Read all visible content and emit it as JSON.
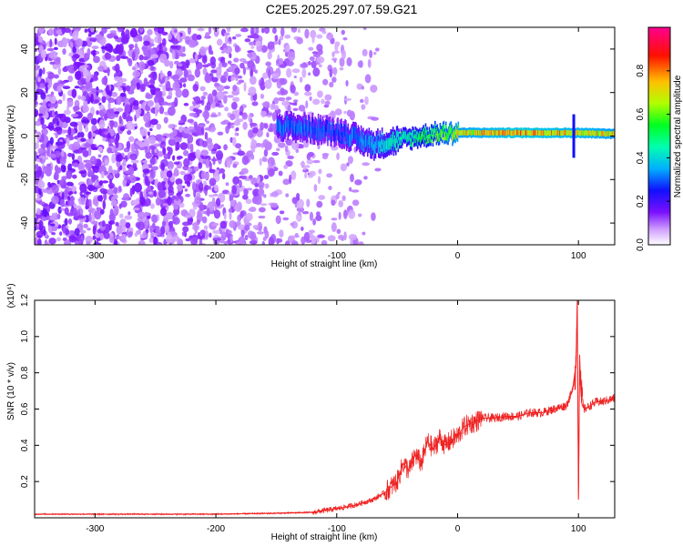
{
  "title": "C2E5.2025.297.07.59.G21",
  "chart_data": [
    {
      "type": "heatmap",
      "xlabel": "Height of straight line (km)",
      "ylabel": "Frequency (Hz)",
      "xlim": [
        -350,
        130
      ],
      "ylim": [
        -50,
        50
      ],
      "xticks": [
        -300,
        -200,
        -100,
        0,
        100
      ],
      "yticks": [
        -40,
        -20,
        0,
        20,
        40
      ],
      "colorbar": {
        "label": "Normalized spectral amplitude",
        "range": [
          0.0,
          1.0
        ],
        "ticks": [
          "0.0",
          "0.2",
          "0.4",
          "0.6",
          "0.8"
        ],
        "colormap": [
          "#ffffff",
          "#d9b3ff",
          "#a050ff",
          "#6a00ff",
          "#0000ff",
          "#00c8ff",
          "#00ff60",
          "#c8ff00",
          "#ffb000",
          "#ff0000",
          "#ff0090"
        ]
      },
      "signal_band": {
        "center_freq_hz": 1.5,
        "x_start_km": -150,
        "x_end_km": 130,
        "description_points": [
          {
            "x": -150,
            "f": 5,
            "amp": 0.35
          },
          {
            "x": -100,
            "f": 2,
            "amp": 0.3
          },
          {
            "x": -70,
            "f": -4,
            "amp": 0.4
          },
          {
            "x": -40,
            "f": -1,
            "amp": 0.5
          },
          {
            "x": -20,
            "f": 1,
            "amp": 0.6
          },
          {
            "x": 0,
            "f": 1.5,
            "amp": 0.75
          },
          {
            "x": 50,
            "f": 1.5,
            "amp": 0.85
          },
          {
            "x": 95,
            "f": 1.5,
            "amp": 0.8
          },
          {
            "x": 130,
            "f": 1,
            "amp": 0.75
          }
        ]
      },
      "noise_extent_km": [
        -350,
        -75
      ]
    },
    {
      "type": "line",
      "xlabel": "Height of straight line (km)",
      "ylabel": "SNR (10 * v/v)",
      "multiplier": "(x10⁴)",
      "xlim": [
        -350,
        130
      ],
      "ylim": [
        0,
        1.2
      ],
      "xticks": [
        -300,
        -200,
        -100,
        0,
        100
      ],
      "yticks": [
        "0.2",
        "0.4",
        "0.6",
        "0.8",
        "1.0",
        "1.2"
      ],
      "color": "#ff2020",
      "series": [
        {
          "x": [
            -350,
            -300,
            -250,
            -200,
            -150,
            -120,
            -100,
            -85,
            -70,
            -60,
            -50,
            -45,
            -40,
            -35,
            -30,
            -25,
            -20,
            -15,
            -10,
            -5,
            0,
            5,
            10,
            15,
            20,
            30,
            40,
            50,
            60,
            70,
            80,
            90,
            95,
            98,
            99,
            100,
            101,
            102,
            103,
            105,
            110,
            115,
            120,
            125,
            130
          ],
          "y": [
            0.02,
            0.02,
            0.02,
            0.02,
            0.025,
            0.03,
            0.05,
            0.07,
            0.1,
            0.14,
            0.2,
            0.3,
            0.26,
            0.35,
            0.3,
            0.42,
            0.38,
            0.44,
            0.4,
            0.43,
            0.45,
            0.5,
            0.52,
            0.53,
            0.55,
            0.55,
            0.56,
            0.56,
            0.58,
            0.58,
            0.6,
            0.62,
            0.7,
            0.85,
            1.2,
            0.1,
            0.9,
            0.7,
            0.62,
            0.6,
            0.62,
            0.64,
            0.64,
            0.65,
            0.66
          ]
        }
      ]
    }
  ]
}
